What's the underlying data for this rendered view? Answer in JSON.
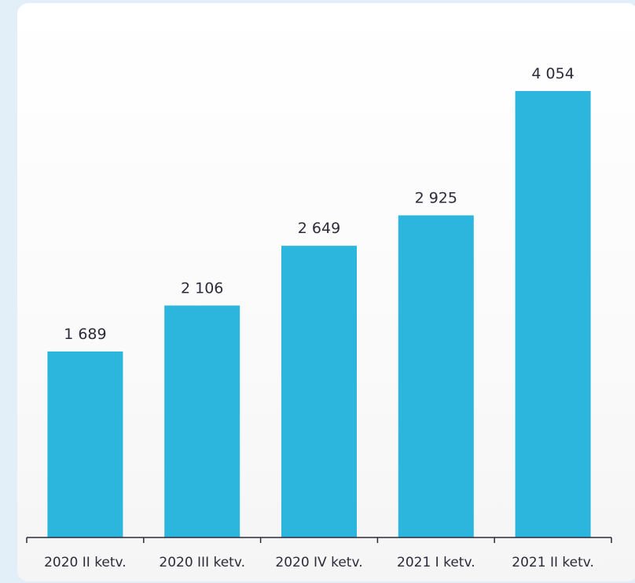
{
  "chart_data": {
    "type": "bar",
    "categories": [
      "2020 II ketv.",
      "2020 III ketv.",
      "2020 IV ketv.",
      "2021 I ketv.",
      "2021 II ketv."
    ],
    "values": [
      1689,
      2106,
      2649,
      2925,
      4054
    ],
    "value_labels": [
      "1 689",
      "2 106",
      "2 649",
      "2 925",
      "4 054"
    ],
    "title": "",
    "xlabel": "",
    "ylabel": "",
    "ylim": [
      0,
      4054
    ],
    "grid": false,
    "legend": "none",
    "bar_color": "#2cb5dd"
  }
}
